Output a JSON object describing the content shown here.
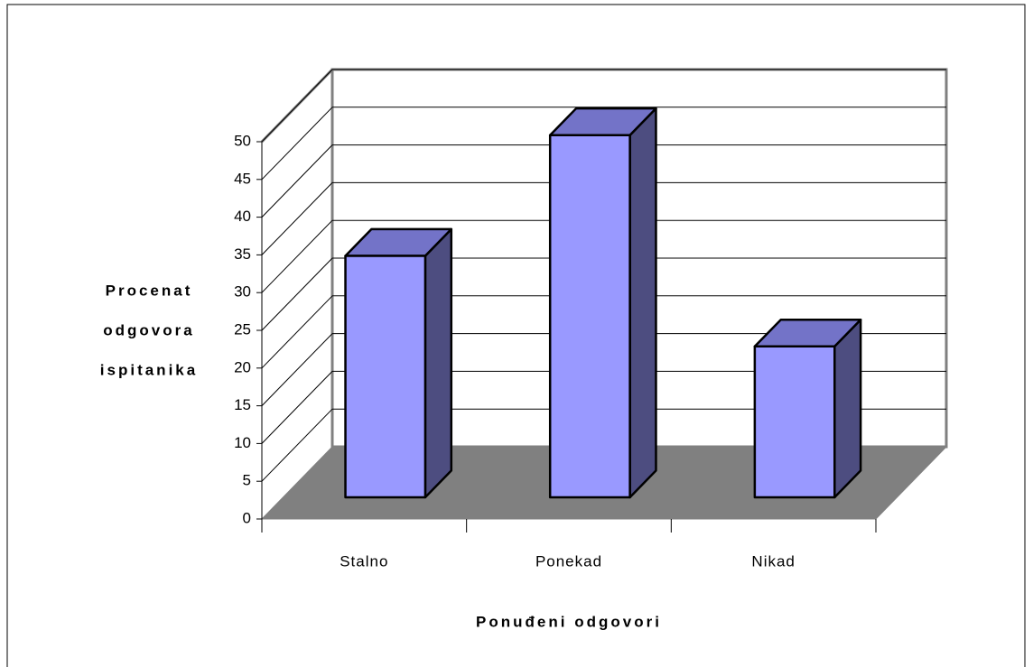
{
  "chart_data": {
    "type": "bar3d",
    "categories": [
      "Stalno",
      "Ponekad",
      "Nikad"
    ],
    "values": [
      32,
      48,
      20
    ],
    "color": "#9999ff",
    "xlabel": "Ponuđeni odgovori",
    "ylabel": [
      "Procenat",
      "odgovora",
      "ispitanika"
    ],
    "ylim": [
      0,
      50
    ],
    "yticks": [
      0,
      5,
      10,
      15,
      20,
      25,
      30,
      35,
      40,
      45,
      50
    ],
    "grid": true
  }
}
